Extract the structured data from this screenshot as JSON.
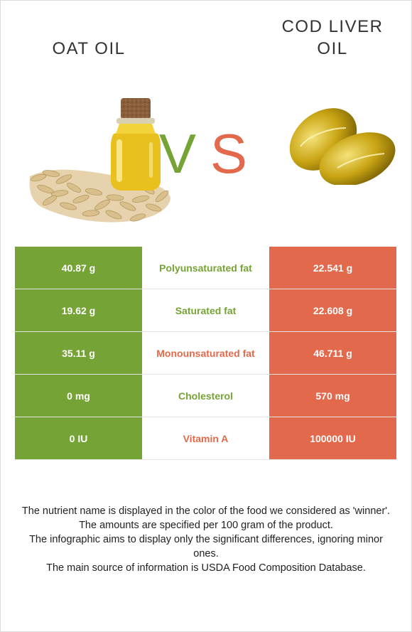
{
  "foods": {
    "left": {
      "name": "OAT OIL",
      "color": "#76a335"
    },
    "right": {
      "name_line1": "COD LIVER",
      "name_line2": "OIL",
      "color": "#e2694b"
    }
  },
  "vs": {
    "v": "V",
    "s": "S"
  },
  "images": {
    "left": "oat-oil-bottle-with-oat-grains",
    "right": "cod-liver-oil-softgel-capsules"
  },
  "rows": [
    {
      "left": "40.87 g",
      "nutrient": "Polyunsaturated fat",
      "right": "22.541 g",
      "winner": "left"
    },
    {
      "left": "19.62 g",
      "nutrient": "Saturated fat",
      "right": "22.608 g",
      "winner": "left"
    },
    {
      "left": "35.11 g",
      "nutrient": "Monounsaturated fat",
      "right": "46.711 g",
      "winner": "right"
    },
    {
      "left": "0 mg",
      "nutrient": "Cholesterol",
      "right": "570 mg",
      "winner": "left"
    },
    {
      "left": "0 IU",
      "nutrient": "Vitamin A",
      "right": "100000 IU",
      "winner": "right"
    }
  ],
  "notes": [
    "The nutrient name is displayed in the color of the food we considered as 'winner'.",
    "The amounts are specified per 100 gram of the product.",
    "The infographic aims to display only the significant differences, ignoring minor ones.",
    "The main source of information is USDA Food Composition Database."
  ]
}
